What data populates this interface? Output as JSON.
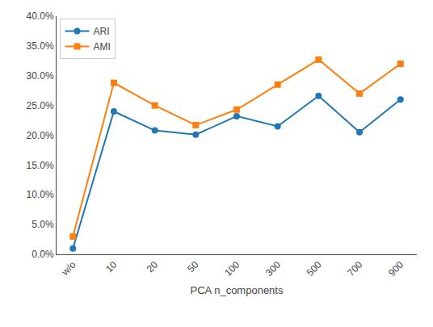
{
  "chart_data": {
    "type": "line",
    "xlabel": "PCA n_components",
    "categories": [
      "w/o",
      "10",
      "20",
      "50",
      "100",
      "300",
      "500",
      "700",
      "900"
    ],
    "series": [
      {
        "name": "ARI",
        "color": "#1f77b4",
        "marker": "circle",
        "values": [
          0.01,
          0.24,
          0.208,
          0.201,
          0.232,
          0.215,
          0.266,
          0.205,
          0.26
        ]
      },
      {
        "name": "AMI",
        "color": "#ff7f0e",
        "marker": "square",
        "values": [
          0.03,
          0.288,
          0.25,
          0.217,
          0.243,
          0.285,
          0.327,
          0.27,
          0.32
        ]
      }
    ],
    "ylim": [
      0.0,
      0.4
    ],
    "yticks": [
      {
        "value": 0.0,
        "label": "0.0%"
      },
      {
        "value": 0.05,
        "label": "5.0%"
      },
      {
        "value": 0.1,
        "label": "10.0%"
      },
      {
        "value": 0.15,
        "label": "15.0%"
      },
      {
        "value": 0.2,
        "label": "20.0%"
      },
      {
        "value": 0.25,
        "label": "25.0%"
      },
      {
        "value": 0.3,
        "label": "30.0%"
      },
      {
        "value": 0.35,
        "label": "35.0%"
      },
      {
        "value": 0.4,
        "label": "40.0%"
      }
    ],
    "grid": false,
    "legend": "upper left"
  }
}
